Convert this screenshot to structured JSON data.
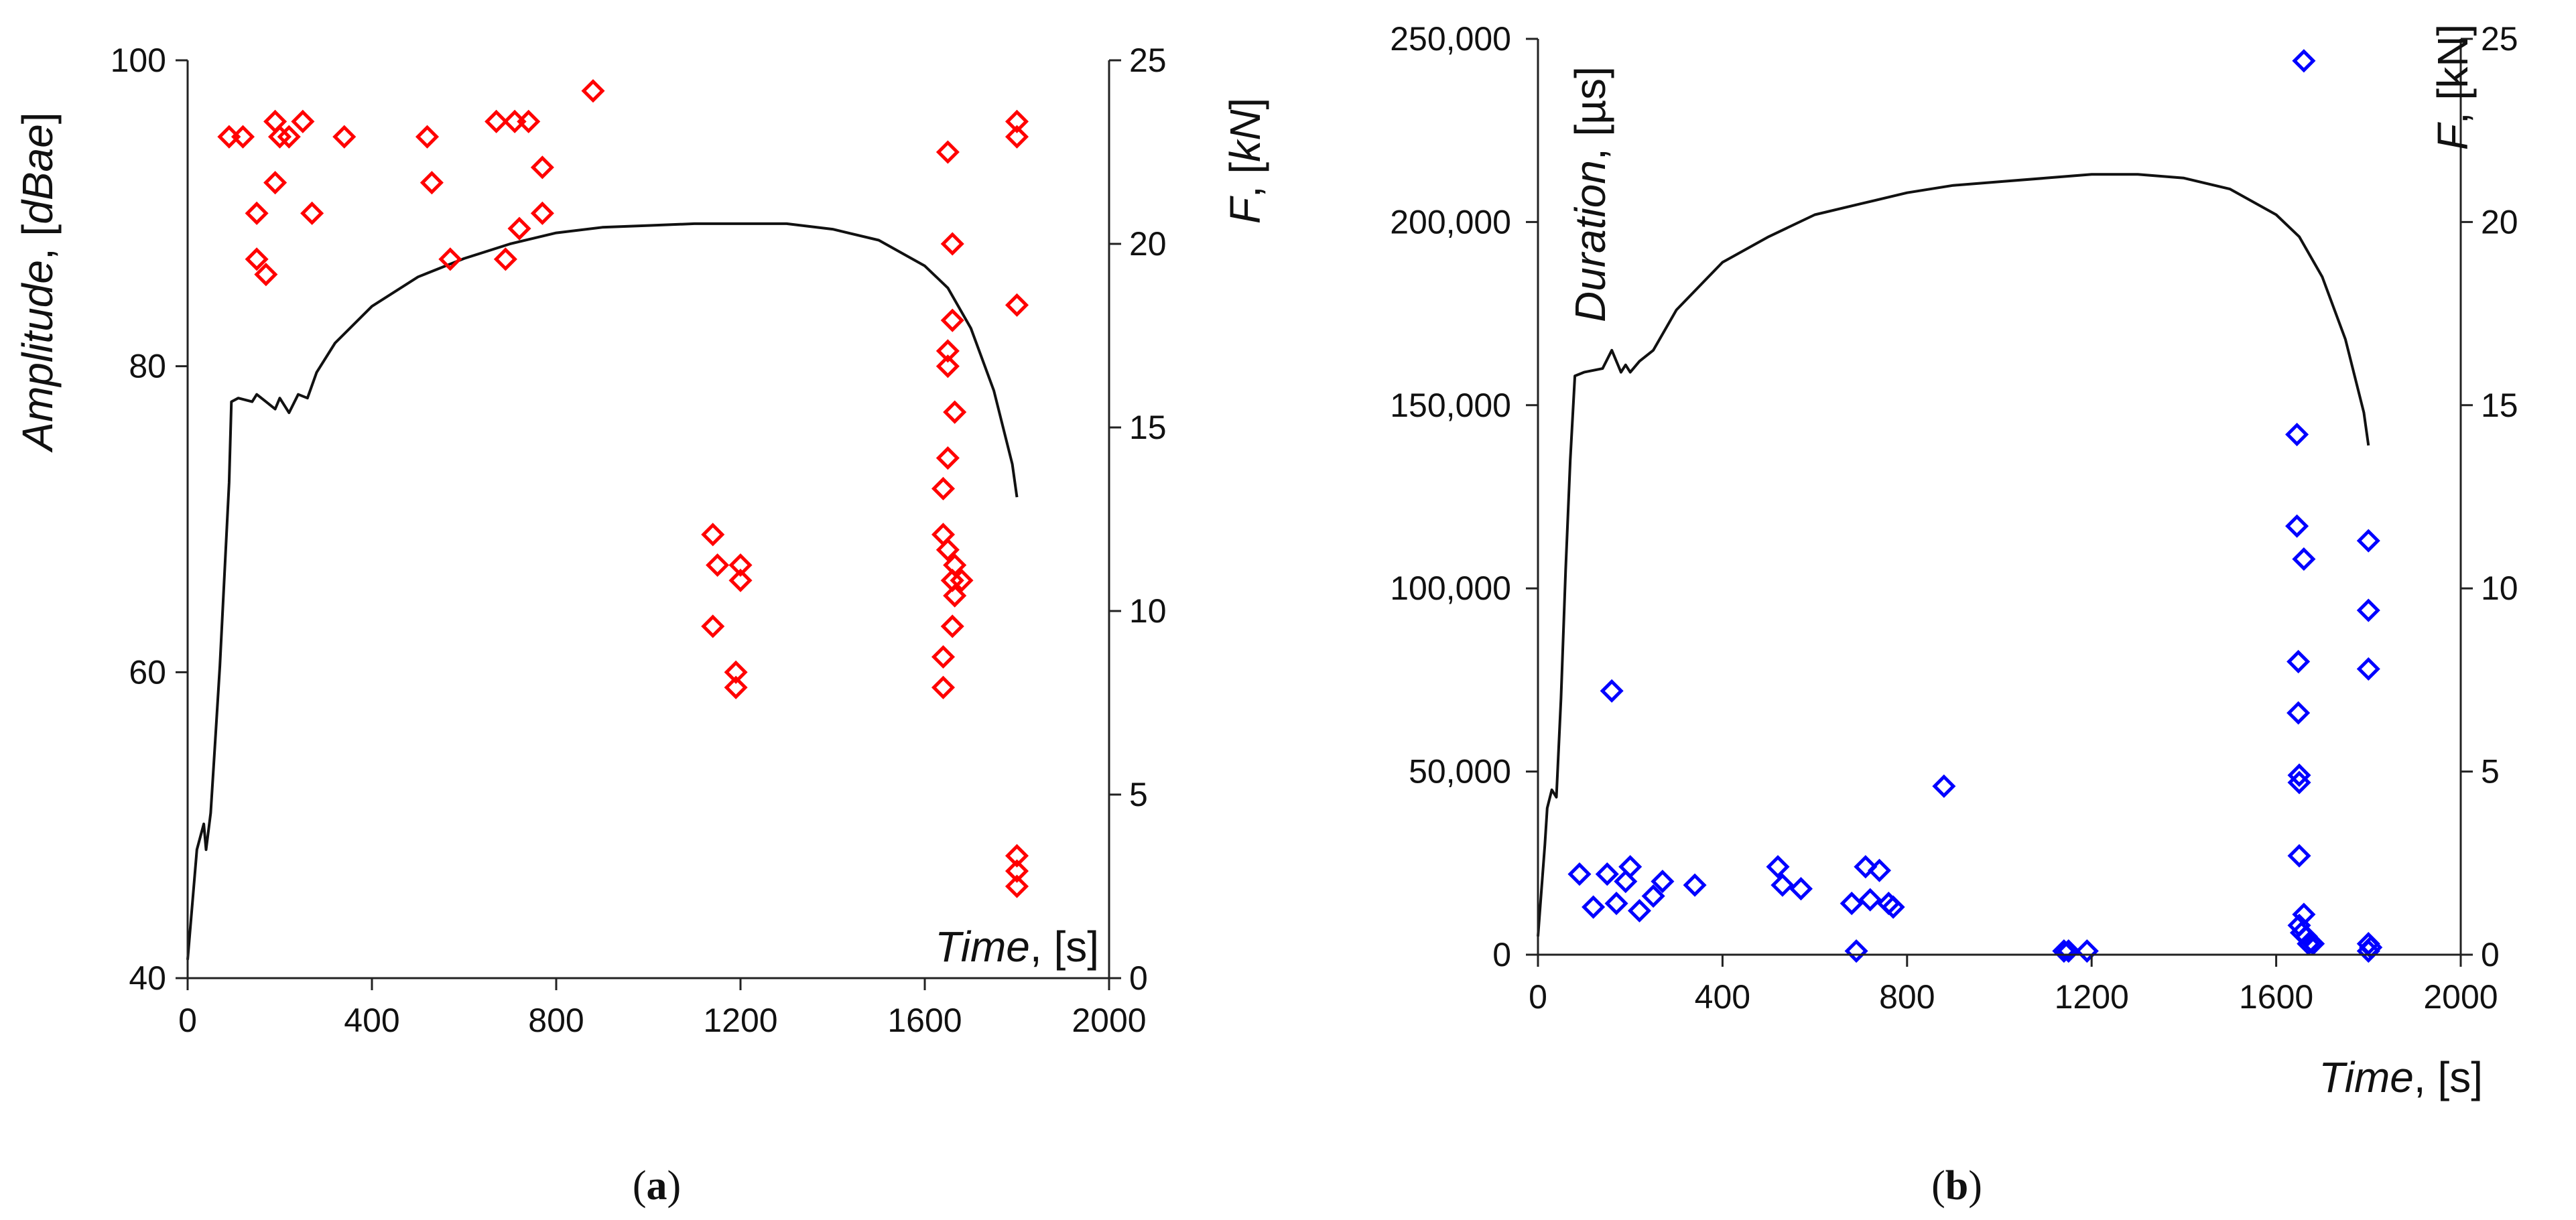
{
  "figure": {
    "caption_a": {
      "open": "(",
      "letter": "a",
      "close": ")"
    },
    "caption_b": {
      "open": "(",
      "letter": "b",
      "close": ")"
    }
  },
  "chart_data": [
    {
      "id": "a",
      "type": "scatter",
      "x_label": {
        "var": "Time",
        "unit": ", [s]"
      },
      "y_label": {
        "var": "Amplitude",
        "unit_open": ", [",
        "unit_var": "dBae",
        "unit_close": "]"
      },
      "y2_label": {
        "var": "F",
        "unit_open": ", [",
        "unit_var": "kN",
        "unit_close": "]"
      },
      "xlim": [
        0,
        2000
      ],
      "ylim": [
        40,
        100
      ],
      "y2lim": [
        0,
        25
      ],
      "x_ticks": [
        0,
        400,
        800,
        1200,
        1600,
        2000
      ],
      "x_tick_labels": [
        "0",
        "400",
        "800",
        "1200",
        "1600",
        "2000"
      ],
      "y_ticks": [
        40,
        60,
        80,
        100
      ],
      "y_tick_labels": [
        "40",
        "60",
        "80",
        "100"
      ],
      "y2_ticks": [
        0,
        5,
        10,
        15,
        20,
        25
      ],
      "y2_tick_labels": [
        "0",
        "5",
        "10",
        "15",
        "20",
        "25"
      ],
      "scatter_color": "#ff0000",
      "line_color": "#111111",
      "scatter_series": {
        "name": "Amplitude",
        "points": [
          [
            90,
            95
          ],
          [
            120,
            95
          ],
          [
            150,
            87
          ],
          [
            150,
            90
          ],
          [
            170,
            86
          ],
          [
            190,
            96
          ],
          [
            190,
            92
          ],
          [
            200,
            95
          ],
          [
            220,
            95
          ],
          [
            250,
            96
          ],
          [
            270,
            90
          ],
          [
            340,
            95
          ],
          [
            520,
            95
          ],
          [
            530,
            92
          ],
          [
            570,
            87
          ],
          [
            670,
            96
          ],
          [
            690,
            87
          ],
          [
            710,
            96
          ],
          [
            720,
            89
          ],
          [
            740,
            96
          ],
          [
            770,
            90
          ],
          [
            770,
            93
          ],
          [
            880,
            98
          ],
          [
            1140,
            69
          ],
          [
            1140,
            63
          ],
          [
            1150,
            67
          ],
          [
            1190,
            60
          ],
          [
            1190,
            59
          ],
          [
            1200,
            66
          ],
          [
            1200,
            67
          ],
          [
            1640,
            59
          ],
          [
            1640,
            61
          ],
          [
            1640,
            69
          ],
          [
            1640,
            72
          ],
          [
            1650,
            94
          ],
          [
            1650,
            81
          ],
          [
            1650,
            80
          ],
          [
            1650,
            74
          ],
          [
            1650,
            68
          ],
          [
            1660,
            88
          ],
          [
            1660,
            83
          ],
          [
            1660,
            66
          ],
          [
            1660,
            63
          ],
          [
            1665,
            77
          ],
          [
            1665,
            67
          ],
          [
            1665,
            65
          ],
          [
            1680,
            66
          ],
          [
            1800,
            96
          ],
          [
            1800,
            95
          ],
          [
            1800,
            84
          ],
          [
            1800,
            48
          ],
          [
            1800,
            47
          ],
          [
            1800,
            46
          ]
        ]
      },
      "force_series": {
        "name": "F",
        "axis": "right",
        "points": [
          [
            0,
            0.5
          ],
          [
            20,
            3.5
          ],
          [
            35,
            4.2
          ],
          [
            40,
            3.5
          ],
          [
            50,
            4.5
          ],
          [
            60,
            6.5
          ],
          [
            70,
            8.5
          ],
          [
            80,
            11
          ],
          [
            90,
            13.5
          ],
          [
            95,
            15.7
          ],
          [
            110,
            15.8
          ],
          [
            140,
            15.7
          ],
          [
            150,
            15.9
          ],
          [
            170,
            15.7
          ],
          [
            190,
            15.5
          ],
          [
            200,
            15.8
          ],
          [
            220,
            15.4
          ],
          [
            240,
            15.9
          ],
          [
            260,
            15.8
          ],
          [
            280,
            16.5
          ],
          [
            320,
            17.3
          ],
          [
            400,
            18.3
          ],
          [
            500,
            19.1
          ],
          [
            600,
            19.6
          ],
          [
            700,
            20.0
          ],
          [
            800,
            20.3
          ],
          [
            900,
            20.45
          ],
          [
            1000,
            20.5
          ],
          [
            1100,
            20.55
          ],
          [
            1200,
            20.55
          ],
          [
            1300,
            20.55
          ],
          [
            1400,
            20.4
          ],
          [
            1500,
            20.1
          ],
          [
            1600,
            19.4
          ],
          [
            1650,
            18.8
          ],
          [
            1700,
            17.7
          ],
          [
            1750,
            16.0
          ],
          [
            1790,
            14.0
          ],
          [
            1800,
            13.1
          ]
        ]
      }
    },
    {
      "id": "b",
      "type": "scatter",
      "x_label": {
        "var": "Time",
        "unit": ", [s]"
      },
      "y_label": {
        "var": "Duration",
        "unit": ", [µs]"
      },
      "y2_label": {
        "var": "F",
        "unit": ", [kN]"
      },
      "xlim": [
        0,
        2000
      ],
      "ylim": [
        0,
        250000
      ],
      "y2lim": [
        0,
        25
      ],
      "x_ticks": [
        0,
        400,
        800,
        1200,
        1600,
        2000
      ],
      "x_tick_labels": [
        "0",
        "400",
        "800",
        "1200",
        "1600",
        "2000"
      ],
      "y_ticks": [
        0,
        50000,
        100000,
        150000,
        200000,
        250000
      ],
      "y_tick_labels": [
        "0",
        "50,000",
        "100,000",
        "150,000",
        "200,000",
        "250,000"
      ],
      "y2_ticks": [
        0,
        5,
        10,
        15,
        20,
        25
      ],
      "y2_tick_labels": [
        "0",
        "5",
        "10",
        "15",
        "20",
        "25"
      ],
      "scatter_color": "#0000ff",
      "line_color": "#111111",
      "scatter_series": {
        "name": "Duration",
        "points": [
          [
            90,
            22000
          ],
          [
            120,
            13000
          ],
          [
            150,
            22000
          ],
          [
            160,
            72000
          ],
          [
            170,
            14000
          ],
          [
            190,
            20000
          ],
          [
            200,
            24000
          ],
          [
            220,
            12000
          ],
          [
            250,
            16000
          ],
          [
            270,
            20000
          ],
          [
            340,
            19000
          ],
          [
            520,
            24000
          ],
          [
            530,
            19000
          ],
          [
            570,
            18000
          ],
          [
            680,
            14000
          ],
          [
            690,
            1000
          ],
          [
            710,
            24000
          ],
          [
            720,
            15000
          ],
          [
            740,
            23000
          ],
          [
            760,
            14000
          ],
          [
            770,
            13000
          ],
          [
            880,
            46000
          ],
          [
            1140,
            1000
          ],
          [
            1150,
            1000
          ],
          [
            1190,
            1000
          ],
          [
            1645,
            142000
          ],
          [
            1645,
            117000
          ],
          [
            1648,
            80000
          ],
          [
            1648,
            66000
          ],
          [
            1650,
            49000
          ],
          [
            1650,
            47000
          ],
          [
            1650,
            27000
          ],
          [
            1650,
            8000
          ],
          [
            1655,
            6000
          ],
          [
            1660,
            108000
          ],
          [
            1660,
            11000
          ],
          [
            1665,
            5000
          ],
          [
            1670,
            3000
          ],
          [
            1680,
            3000
          ],
          [
            1660,
            244000
          ],
          [
            1800,
            113000
          ],
          [
            1800,
            94000
          ],
          [
            1800,
            78000
          ],
          [
            1800,
            3000
          ],
          [
            1800,
            1000
          ],
          [
            1805,
            2000
          ]
        ]
      },
      "force_series": {
        "name": "F",
        "axis": "right",
        "points": [
          [
            0,
            0.5
          ],
          [
            15,
            3.0
          ],
          [
            20,
            4.0
          ],
          [
            30,
            4.5
          ],
          [
            40,
            4.3
          ],
          [
            50,
            7.0
          ],
          [
            60,
            10.5
          ],
          [
            70,
            13.5
          ],
          [
            80,
            15.8
          ],
          [
            100,
            15.9
          ],
          [
            140,
            16.0
          ],
          [
            160,
            16.5
          ],
          [
            180,
            15.9
          ],
          [
            190,
            16.1
          ],
          [
            200,
            15.9
          ],
          [
            220,
            16.2
          ],
          [
            250,
            16.5
          ],
          [
            300,
            17.6
          ],
          [
            400,
            18.9
          ],
          [
            500,
            19.6
          ],
          [
            600,
            20.2
          ],
          [
            700,
            20.5
          ],
          [
            800,
            20.8
          ],
          [
            900,
            21.0
          ],
          [
            1000,
            21.1
          ],
          [
            1100,
            21.2
          ],
          [
            1200,
            21.3
          ],
          [
            1300,
            21.3
          ],
          [
            1400,
            21.2
          ],
          [
            1500,
            20.9
          ],
          [
            1600,
            20.2
          ],
          [
            1650,
            19.6
          ],
          [
            1700,
            18.5
          ],
          [
            1750,
            16.8
          ],
          [
            1790,
            14.8
          ],
          [
            1800,
            13.9
          ]
        ]
      }
    }
  ]
}
